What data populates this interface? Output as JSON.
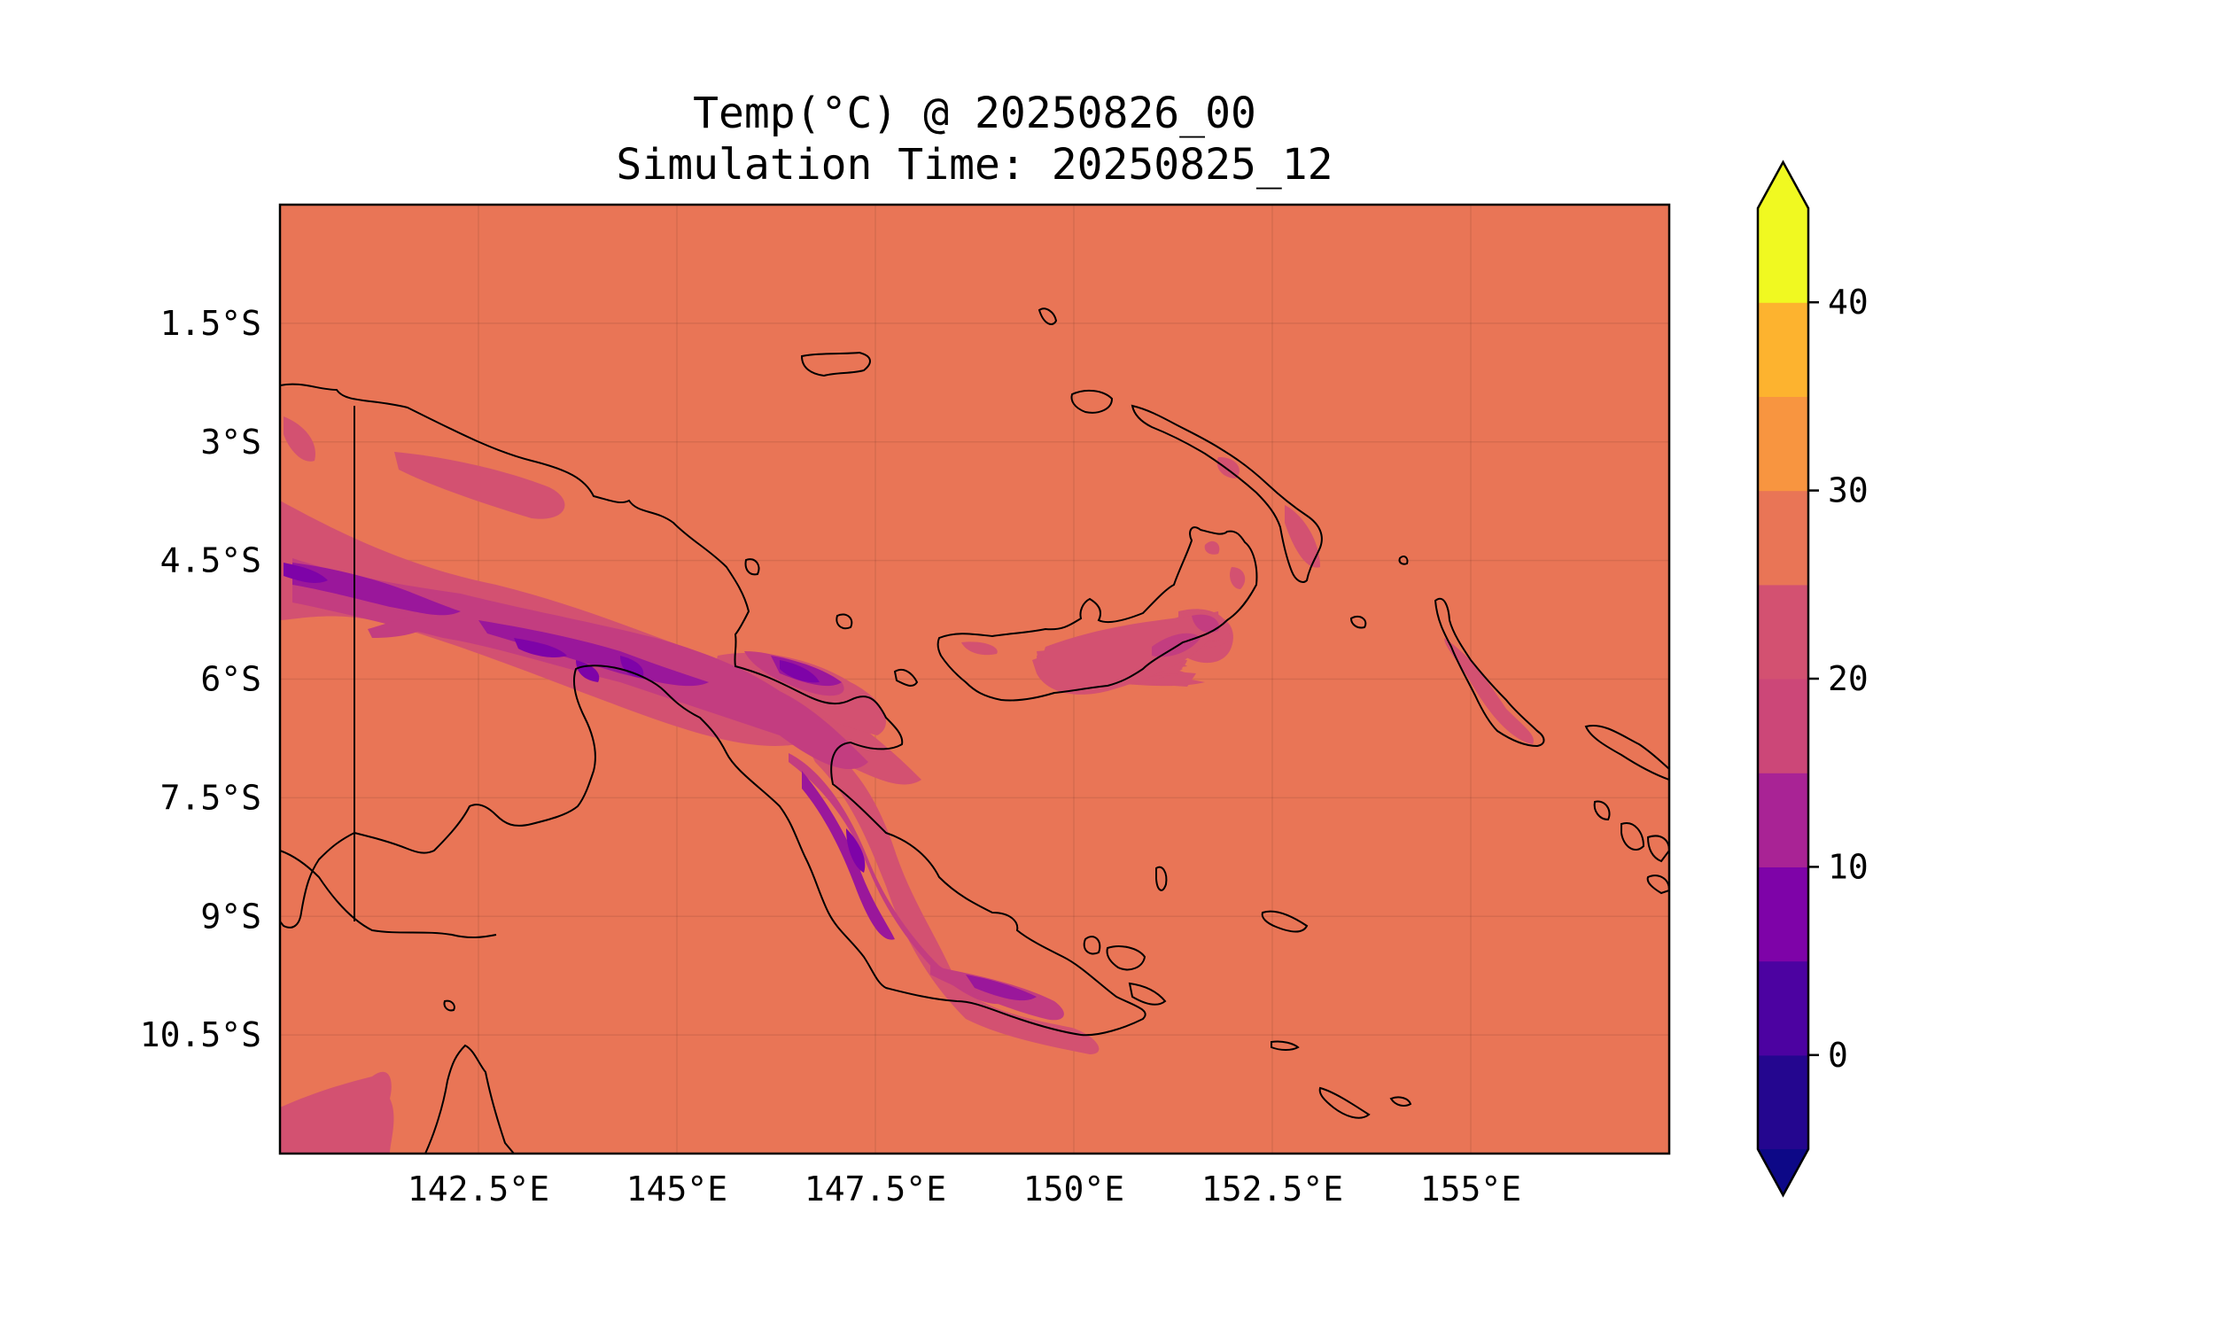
{
  "title": {
    "line1": "Temp(°C) @ 20250826_00",
    "line2": "Simulation Time: 20250825_12"
  },
  "map": {
    "projection": "PlateCarree",
    "extent_lon": [
      140.0,
      157.5
    ],
    "extent_lat": [
      -12.0,
      0.0
    ],
    "background_value_c": 27.5,
    "background_color": "#e97556",
    "coastline_color": "#000000",
    "x_ticks": [
      {
        "lon": 142.5,
        "label": "142.5°E"
      },
      {
        "lon": 145.0,
        "label": "145°E"
      },
      {
        "lon": 147.5,
        "label": "147.5°E"
      },
      {
        "lon": 150.0,
        "label": "150°E"
      },
      {
        "lon": 152.5,
        "label": "152.5°E"
      },
      {
        "lon": 155.0,
        "label": "155°E"
      }
    ],
    "y_ticks": [
      {
        "lat": -1.5,
        "label": "1.5°S"
      },
      {
        "lat": -3.0,
        "label": "3°S"
      },
      {
        "lat": -4.5,
        "label": "4.5°S"
      },
      {
        "lat": -6.0,
        "label": "6°S"
      },
      {
        "lat": -7.5,
        "label": "7.5°S"
      },
      {
        "lat": -9.0,
        "label": "9°S"
      },
      {
        "lat": -10.5,
        "label": "10.5°S"
      }
    ]
  },
  "colorbar": {
    "cmap": "plasma",
    "extend": "both",
    "range": [
      -5,
      45
    ],
    "levels": [
      -5,
      0,
      5,
      10,
      15,
      20,
      25,
      30,
      35,
      40,
      45
    ],
    "band_colors": [
      "#24068f",
      "#4c02a1",
      "#7e03a8",
      "#a92395",
      "#cc4778",
      "#d35171",
      "#e97556",
      "#f89540",
      "#fdb32f",
      "#f0f921"
    ],
    "under_color": "#0d0887",
    "over_color": "#f0f921",
    "ticks": [
      {
        "value": 0,
        "label": "0"
      },
      {
        "value": 10,
        "label": "10"
      },
      {
        "value": 20,
        "label": "20"
      },
      {
        "value": 30,
        "label": "30"
      },
      {
        "value": 40,
        "label": "40"
      }
    ]
  }
}
